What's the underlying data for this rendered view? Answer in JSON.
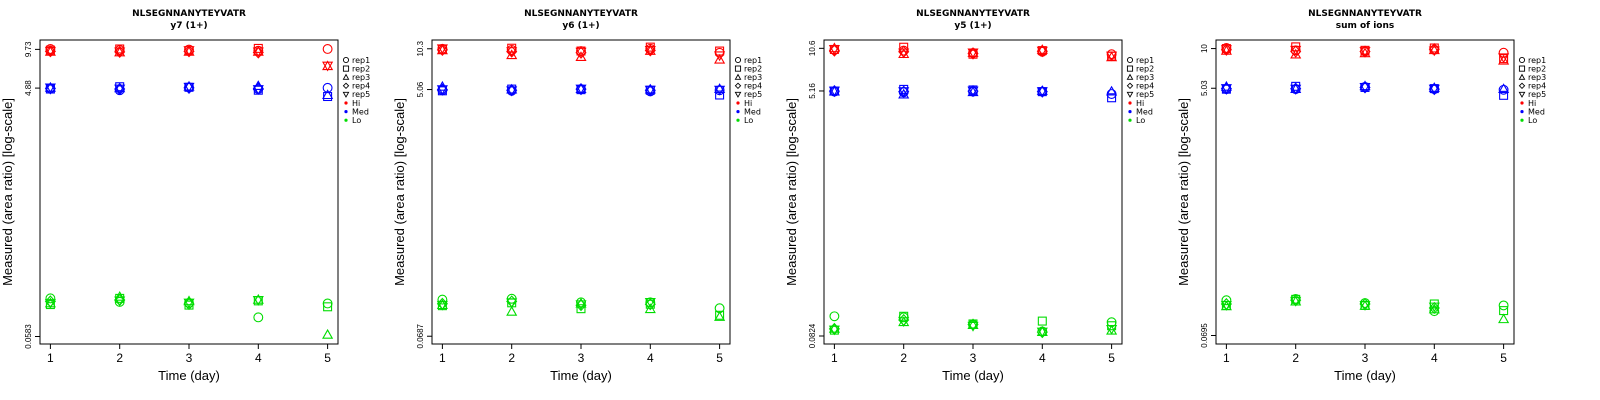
{
  "common": {
    "xlabel": "Time (day)",
    "ylabel": "Measured (area ratio) [log-scale]",
    "x_ticks": [
      "1",
      "2",
      "3",
      "4",
      "5"
    ],
    "legend": [
      {
        "label": "rep1",
        "shape": "circle-open"
      },
      {
        "label": "rep2",
        "shape": "square-open"
      },
      {
        "label": "rep3",
        "shape": "triangle-up-open"
      },
      {
        "label": "rep4",
        "shape": "diamond-open"
      },
      {
        "label": "rep5",
        "shape": "triangle-down-open"
      },
      {
        "label": "Hi",
        "shape": "dot",
        "color": "#ff0000"
      },
      {
        "label": "Med",
        "shape": "dot",
        "color": "#0000ff"
      },
      {
        "label": "Lo",
        "shape": "dot",
        "color": "#00dd00"
      }
    ],
    "colors": {
      "Hi": "#ff0000",
      "Med": "#0000ff",
      "Lo": "#00dd00"
    }
  },
  "chart_data": [
    {
      "type": "scatter",
      "title": "NLSEGNNANYTEYVATR",
      "subtitle": "y7 (1+)",
      "y_scale": "log",
      "y_ticks": [
        "9.73",
        "4.88",
        "0.0583"
      ],
      "ylim": [
        0.051,
        11.5
      ],
      "series": [
        {
          "level": "Hi",
          "rep": "rep1",
          "x": [
            1,
            2,
            3,
            4,
            5
          ],
          "y": [
            9.8,
            9.6,
            9.7,
            9.5,
            9.8
          ]
        },
        {
          "level": "Hi",
          "rep": "rep2",
          "x": [
            1,
            2,
            3,
            4
          ],
          "y": [
            9.6,
            9.8,
            9.5,
            9.9
          ]
        },
        {
          "level": "Hi",
          "rep": "rep3",
          "x": [
            1,
            2,
            3,
            4,
            5
          ],
          "y": [
            9.3,
            9.2,
            9.3,
            9.3,
            7.2
          ]
        },
        {
          "level": "Hi",
          "rep": "rep4",
          "x": [
            1,
            2,
            3,
            4
          ],
          "y": [
            9.4,
            9.3,
            9.4,
            9.2
          ]
        },
        {
          "level": "Hi",
          "rep": "rep5",
          "x": [
            1,
            2,
            3,
            4,
            5
          ],
          "y": [
            9.5,
            9.4,
            9.6,
            9.4,
            7.3
          ]
        },
        {
          "level": "Med",
          "rep": "rep1",
          "x": [
            1,
            2,
            3,
            4,
            5
          ],
          "y": [
            4.85,
            4.7,
            4.95,
            4.8,
            4.9
          ]
        },
        {
          "level": "Med",
          "rep": "rep2",
          "x": [
            1,
            2,
            3,
            4,
            5
          ],
          "y": [
            4.8,
            5.0,
            4.95,
            4.7,
            4.2
          ]
        },
        {
          "level": "Med",
          "rep": "rep3",
          "x": [
            1,
            2,
            3,
            4,
            5
          ],
          "y": [
            4.9,
            4.85,
            5.0,
            5.05,
            4.3
          ]
        },
        {
          "level": "Med",
          "rep": "rep4",
          "x": [
            1,
            2,
            3,
            4
          ],
          "y": [
            4.85,
            4.8,
            4.9,
            4.85
          ]
        },
        {
          "level": "Med",
          "rep": "rep5",
          "x": [
            1,
            2,
            3,
            4
          ],
          "y": [
            4.95,
            4.85,
            5.0,
            4.8
          ]
        },
        {
          "level": "Lo",
          "rep": "rep1",
          "x": [
            1,
            2,
            3,
            4,
            5
          ],
          "y": [
            0.115,
            0.108,
            0.106,
            0.082,
            0.105
          ]
        },
        {
          "level": "Lo",
          "rep": "rep2",
          "x": [
            1,
            2,
            3,
            4,
            5
          ],
          "y": [
            0.103,
            0.115,
            0.102,
            0.11,
            0.099
          ]
        },
        {
          "level": "Lo",
          "rep": "rep3",
          "x": [
            1,
            2,
            3,
            4,
            5
          ],
          "y": [
            0.105,
            0.118,
            0.109,
            0.112,
            0.06
          ]
        },
        {
          "level": "Lo",
          "rep": "rep4",
          "x": [
            1,
            2,
            3
          ],
          "y": [
            0.109,
            0.112,
            0.104
          ]
        },
        {
          "level": "Lo",
          "rep": "rep5",
          "x": [
            1,
            2,
            3,
            4
          ],
          "y": [
            0.106,
            0.111,
            0.107,
            0.112
          ]
        }
      ]
    },
    {
      "type": "scatter",
      "title": "NLSEGNNANYTEYVATR",
      "subtitle": "y6 (1+)",
      "y_scale": "log",
      "y_ticks": [
        "10.3",
        "5.06",
        "0.0687"
      ],
      "ylim": [
        0.06,
        12.0
      ],
      "series": [
        {
          "level": "Hi",
          "rep": "rep1",
          "x": [
            1,
            2,
            3,
            4,
            5
          ],
          "y": [
            10.3,
            10.1,
            9.9,
            10.3,
            9.6
          ]
        },
        {
          "level": "Hi",
          "rep": "rep2",
          "x": [
            1,
            2,
            3,
            4,
            5
          ],
          "y": [
            10.2,
            10.4,
            9.9,
            10.6,
            9.9
          ]
        },
        {
          "level": "Hi",
          "rep": "rep3",
          "x": [
            1,
            2,
            3,
            4,
            5
          ],
          "y": [
            10.0,
            9.2,
            8.9,
            9.9,
            8.5
          ]
        },
        {
          "level": "Hi",
          "rep": "rep4",
          "x": [
            1,
            2,
            3,
            4
          ],
          "y": [
            10.1,
            9.8,
            9.6,
            10.0
          ]
        },
        {
          "level": "Hi",
          "rep": "rep5",
          "x": [
            1,
            2,
            3,
            4,
            5
          ],
          "y": [
            10.4,
            9.9,
            9.8,
            10.1,
            9.2
          ]
        },
        {
          "level": "Med",
          "rep": "rep1",
          "x": [
            1,
            2,
            3,
            4,
            5
          ],
          "y": [
            5.0,
            4.95,
            5.1,
            4.9,
            5.0
          ]
        },
        {
          "level": "Med",
          "rep": "rep2",
          "x": [
            1,
            2,
            3,
            4,
            5
          ],
          "y": [
            4.95,
            5.1,
            5.05,
            5.0,
            4.6
          ]
        },
        {
          "level": "Med",
          "rep": "rep3",
          "x": [
            1,
            2,
            3,
            4,
            5
          ],
          "y": [
            5.3,
            5.05,
            5.1,
            5.05,
            5.1
          ]
        },
        {
          "level": "Med",
          "rep": "rep4",
          "x": [
            1,
            2,
            3,
            4
          ],
          "y": [
            5.05,
            5.0,
            5.1,
            5.0
          ]
        },
        {
          "level": "Med",
          "rep": "rep5",
          "x": [
            1,
            2,
            3,
            4,
            5
          ],
          "y": [
            5.1,
            5.0,
            5.15,
            5.05,
            5.05
          ]
        },
        {
          "level": "Lo",
          "rep": "rep1",
          "x": [
            1,
            2,
            3,
            4,
            5
          ],
          "y": [
            0.13,
            0.132,
            0.124,
            0.124,
            0.112
          ]
        },
        {
          "level": "Lo",
          "rep": "rep2",
          "x": [
            1,
            2,
            3,
            4,
            5
          ],
          "y": [
            0.117,
            0.123,
            0.111,
            0.12,
            0.099
          ]
        },
        {
          "level": "Lo",
          "rep": "rep3",
          "x": [
            1,
            2,
            3,
            4,
            5
          ],
          "y": [
            0.118,
            0.105,
            0.121,
            0.11,
            0.096
          ]
        },
        {
          "level": "Lo",
          "rep": "rep4",
          "x": [
            1,
            2,
            3,
            4
          ],
          "y": [
            0.121,
            0.126,
            0.118,
            0.12
          ]
        },
        {
          "level": "Lo",
          "rep": "rep5",
          "x": [
            1,
            2,
            3,
            4
          ],
          "y": [
            0.119,
            0.124,
            0.12,
            0.125
          ]
        }
      ]
    },
    {
      "type": "scatter",
      "title": "NLSEGNNANYTEYVATR",
      "subtitle": "y5 (1+)",
      "y_scale": "log",
      "y_ticks": [
        "10.6",
        "5.16",
        "0.0824"
      ],
      "ylim": [
        0.072,
        12.2
      ],
      "series": [
        {
          "level": "Hi",
          "rep": "rep1",
          "x": [
            1,
            2,
            3,
            4,
            5
          ],
          "y": [
            10.3,
            10.2,
            9.8,
            10.0,
            9.6
          ]
        },
        {
          "level": "Hi",
          "rep": "rep2",
          "x": [
            1,
            2,
            3,
            4,
            5
          ],
          "y": [
            10.4,
            10.8,
            9.6,
            10.2,
            9.3
          ]
        },
        {
          "level": "Hi",
          "rep": "rep3",
          "x": [
            1,
            2,
            3,
            4,
            5
          ],
          "y": [
            10.6,
            9.6,
            9.8,
            10.3,
            9.1
          ]
        },
        {
          "level": "Hi",
          "rep": "rep4",
          "x": [
            1,
            2,
            3,
            4
          ],
          "y": [
            10.2,
            10.0,
            9.7,
            10.1
          ]
        },
        {
          "level": "Hi",
          "rep": "rep5",
          "x": [
            1,
            2,
            3,
            4,
            5
          ],
          "y": [
            10.5,
            9.9,
            9.9,
            10.2,
            9.4
          ]
        },
        {
          "level": "Med",
          "rep": "rep1",
          "x": [
            1,
            2,
            3,
            4,
            5
          ],
          "y": [
            5.1,
            5.05,
            5.1,
            5.1,
            4.9
          ]
        },
        {
          "level": "Med",
          "rep": "rep2",
          "x": [
            1,
            2,
            3,
            4,
            5
          ],
          "y": [
            5.15,
            5.3,
            5.25,
            5.1,
            4.6
          ]
        },
        {
          "level": "Med",
          "rep": "rep3",
          "x": [
            1,
            2,
            3,
            4,
            5
          ],
          "y": [
            5.1,
            4.85,
            5.05,
            5.15,
            5.1
          ]
        },
        {
          "level": "Med",
          "rep": "rep4",
          "x": [
            1,
            2,
            3,
            4
          ],
          "y": [
            5.15,
            5.1,
            5.15,
            5.1
          ]
        },
        {
          "level": "Med",
          "rep": "rep5",
          "x": [
            1,
            2,
            3,
            4
          ],
          "y": [
            5.2,
            5.15,
            5.2,
            5.15
          ]
        },
        {
          "level": "Lo",
          "rep": "rep1",
          "x": [
            1,
            2,
            3,
            4,
            5
          ],
          "y": [
            0.115,
            0.113,
            0.1,
            0.089,
            0.104
          ]
        },
        {
          "level": "Lo",
          "rep": "rep2",
          "x": [
            1,
            2,
            3,
            4,
            5
          ],
          "y": [
            0.091,
            0.115,
            0.101,
            0.106,
            0.098
          ]
        },
        {
          "level": "Lo",
          "rep": "rep3",
          "x": [
            1,
            2,
            3,
            4,
            5
          ],
          "y": [
            0.093,
            0.104,
            0.099,
            0.088,
            0.09
          ]
        },
        {
          "level": "Lo",
          "rep": "rep4",
          "x": [
            1,
            2,
            3,
            4
          ],
          "y": [
            0.093,
            0.108,
            0.1,
            0.088
          ]
        },
        {
          "level": "Lo",
          "rep": "rep5",
          "x": [
            1,
            2,
            3,
            4,
            5
          ],
          "y": [
            0.092,
            0.106,
            0.098,
            0.089,
            0.093
          ]
        }
      ]
    },
    {
      "type": "scatter",
      "title": "NLSEGNNANYTEYVATR",
      "subtitle": "sum of ions",
      "y_scale": "log",
      "y_ticks": [
        "10",
        "5.03",
        "0.0695"
      ],
      "ylim": [
        0.06,
        11.6
      ],
      "series": [
        {
          "level": "Hi",
          "rep": "rep1",
          "x": [
            1,
            2,
            3,
            4,
            5
          ],
          "y": [
            10.1,
            9.7,
            9.5,
            9.8,
            9.3
          ]
        },
        {
          "level": "Hi",
          "rep": "rep2",
          "x": [
            1,
            2,
            3,
            4,
            5
          ],
          "y": [
            10.0,
            10.3,
            9.7,
            10.1,
            8.4
          ]
        },
        {
          "level": "Hi",
          "rep": "rep3",
          "x": [
            1,
            2,
            3,
            4,
            5
          ],
          "y": [
            9.6,
            9.0,
            9.2,
            9.7,
            8.1
          ]
        },
        {
          "level": "Hi",
          "rep": "rep4",
          "x": [
            1,
            2,
            3,
            4
          ],
          "y": [
            9.8,
            9.5,
            9.5,
            9.9
          ]
        },
        {
          "level": "Hi",
          "rep": "rep5",
          "x": [
            1,
            2,
            3,
            4,
            5
          ],
          "y": [
            9.9,
            9.8,
            9.6,
            9.7,
            8.6
          ]
        },
        {
          "level": "Med",
          "rep": "rep1",
          "x": [
            1,
            2,
            3,
            4,
            5
          ],
          "y": [
            4.95,
            4.95,
            5.15,
            4.95,
            4.9
          ]
        },
        {
          "level": "Med",
          "rep": "rep2",
          "x": [
            1,
            2,
            3,
            4,
            5
          ],
          "y": [
            4.95,
            5.2,
            5.1,
            5.0,
            4.45
          ]
        },
        {
          "level": "Med",
          "rep": "rep3",
          "x": [
            1,
            2,
            3,
            4,
            5
          ],
          "y": [
            5.15,
            4.95,
            5.2,
            5.05,
            4.95
          ]
        },
        {
          "level": "Med",
          "rep": "rep4",
          "x": [
            1,
            2,
            3,
            4
          ],
          "y": [
            5.0,
            5.0,
            5.1,
            4.95
          ]
        },
        {
          "level": "Med",
          "rep": "rep5",
          "x": [
            1,
            2,
            3,
            4
          ],
          "y": [
            5.05,
            5.0,
            5.15,
            5.0
          ]
        },
        {
          "level": "Lo",
          "rep": "rep1",
          "x": [
            1,
            2,
            3,
            4,
            5
          ],
          "y": [
            0.128,
            0.131,
            0.122,
            0.106,
            0.117
          ]
        },
        {
          "level": "Lo",
          "rep": "rep2",
          "x": [
            1,
            2,
            3,
            4,
            5
          ],
          "y": [
            0.117,
            0.13,
            0.117,
            0.12,
            0.107
          ]
        },
        {
          "level": "Lo",
          "rep": "rep3",
          "x": [
            1,
            2,
            3,
            4,
            5
          ],
          "y": [
            0.115,
            0.125,
            0.116,
            0.109,
            0.092
          ]
        },
        {
          "level": "Lo",
          "rep": "rep4",
          "x": [
            1,
            2,
            3,
            4
          ],
          "y": [
            0.12,
            0.128,
            0.12,
            0.112
          ]
        },
        {
          "level": "Lo",
          "rep": "rep5",
          "x": [
            1,
            2,
            3,
            4
          ],
          "y": [
            0.118,
            0.127,
            0.118,
            0.115
          ]
        }
      ]
    }
  ]
}
